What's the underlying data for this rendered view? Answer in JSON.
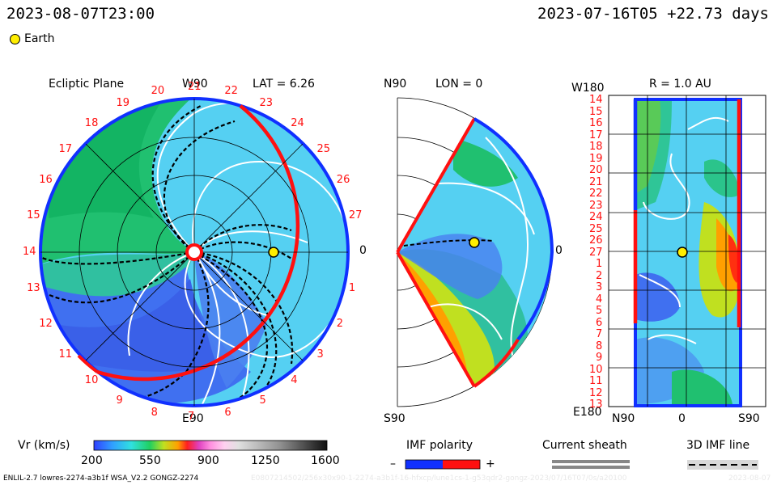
{
  "header": {
    "datetime": "2023-08-07T23:00",
    "reference": "2023-07-16T05 +22.73 days",
    "earth_label": "Earth"
  },
  "ecliptic": {
    "title": "Ecliptic Plane",
    "top_label": "W90",
    "bottom_label": "E90",
    "right_label": "0",
    "lat_label": "LAT = 6.26",
    "ring_numbers": [
      "20",
      "21",
      "22",
      "23",
      "24",
      "25",
      "26",
      "27",
      "0",
      "1",
      "2",
      "3",
      "4",
      "5",
      "6",
      "7",
      "8",
      "9",
      "10",
      "11",
      "12",
      "13",
      "14",
      "15",
      "16",
      "17",
      "18",
      "19"
    ]
  },
  "meridional": {
    "top_label": "N90",
    "bottom_label": "S90",
    "title": "LON = 0",
    "right_label": "0"
  },
  "radial": {
    "title": "R = 1.0 AU",
    "top_left_label": "W180",
    "bottom_left_label": "E180",
    "row_labels": [
      "14",
      "15",
      "16",
      "17",
      "18",
      "19",
      "20",
      "21",
      "22",
      "23",
      "24",
      "25",
      "26",
      "27",
      "1",
      "2",
      "3",
      "4",
      "5",
      "6",
      "7",
      "8",
      "9",
      "10",
      "11",
      "12",
      "13"
    ],
    "x_labels": [
      "N90",
      "0",
      "S90"
    ]
  },
  "colorbar": {
    "label": "Vr (km/s)",
    "ticks": [
      "200",
      "550",
      "900",
      "1250",
      "1600"
    ]
  },
  "legend": {
    "imf_title": "IMF polarity",
    "minus": "–",
    "plus": "+",
    "sheath_title": "Current sheath",
    "line_title": "3D IMF line"
  },
  "footer": {
    "model_info": "ENLIL-2.7 lowres-2274-a3b1f WSA_V2.2 GONGZ-2274",
    "file_info": "E0807214502/256x30x90-1-2274-a3b1f-16-hfxcp/lune1cs-1-g53qdr2-gongz-2023/07/16T07/0s/a20100",
    "date_stamp": "2023-08-07"
  },
  "colors": {
    "positive_polarity": "#ff1010",
    "negative_polarity": "#1030ff",
    "earth": "#ffee00",
    "sheath": "#888888"
  }
}
